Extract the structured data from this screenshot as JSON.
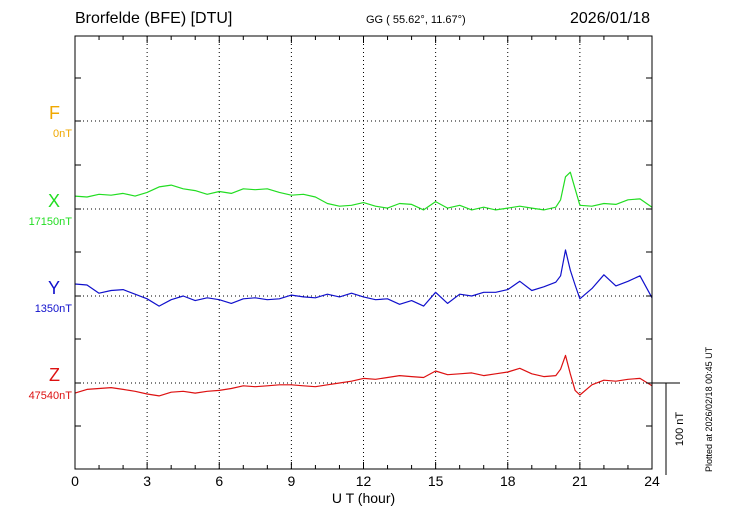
{
  "header": {
    "station": "Brorfelde (BFE)  [DTU]",
    "coords": "GG ( 55.62°,  11.67°)",
    "date": "2026/01/18"
  },
  "footer": {
    "plotted": "Plotted at 2026/02/18 00:45 UT"
  },
  "scale_bar": {
    "label": "100 nT",
    "value_nT": 100
  },
  "chart_data": {
    "type": "line",
    "title": "Brorfelde (BFE)  [DTU]",
    "xlabel": "U T (hour)",
    "ylabel": "",
    "xlim": [
      0,
      24
    ],
    "x_ticks": [
      0,
      3,
      6,
      9,
      12,
      15,
      18,
      21,
      24
    ],
    "x_tick_labels": [
      "0",
      "3",
      "6",
      "9",
      "12",
      "15",
      "18",
      "21",
      "24"
    ],
    "grid": true,
    "series": [
      {
        "name": "F",
        "baseline_label": "0nT",
        "color": "#f0a800",
        "values_x": [],
        "values_nT": []
      },
      {
        "name": "X",
        "baseline_label": "17150nT",
        "color": "#22dd22",
        "values_x": [
          0,
          0.5,
          1,
          1.5,
          2,
          2.5,
          3,
          3.5,
          4,
          4.5,
          5,
          5.5,
          6,
          6.5,
          7,
          7.5,
          8,
          8.5,
          9,
          9.5,
          10,
          10.5,
          11,
          11.5,
          12,
          12.5,
          13,
          13.5,
          14,
          14.5,
          15,
          15.5,
          16,
          16.5,
          17,
          17.5,
          18,
          18.5,
          19,
          19.5,
          20,
          20.2,
          20.4,
          20.6,
          20.8,
          21,
          21.5,
          22,
          22.5,
          23,
          23.5,
          24
        ],
        "values_nT": [
          17164,
          17163,
          17166,
          17165,
          17167,
          17164,
          17168,
          17174,
          17176,
          17172,
          17170,
          17166,
          17169,
          17167,
          17172,
          17171,
          17172,
          17168,
          17165,
          17166,
          17163,
          17156,
          17153,
          17154,
          17157,
          17153,
          17151,
          17156,
          17155,
          17149,
          17158,
          17151,
          17154,
          17149,
          17152,
          17149,
          17151,
          17153,
          17151,
          17149,
          17152,
          17160,
          17185,
          17190,
          17172,
          17154,
          17153,
          17156,
          17155,
          17160,
          17161,
          17152
        ]
      },
      {
        "name": "Y",
        "baseline_label": "1350nT",
        "color": "#1010cc",
        "values_x": [
          0,
          0.5,
          1,
          1.5,
          2,
          2.5,
          3,
          3.5,
          4,
          4.5,
          5,
          5.5,
          6,
          6.5,
          7,
          7.5,
          8,
          8.5,
          9,
          9.5,
          10,
          10.5,
          11,
          11.5,
          12,
          12.5,
          13,
          13.5,
          14,
          14.5,
          15,
          15.5,
          16,
          16.5,
          17,
          17.5,
          18,
          18.5,
          19,
          19.5,
          20,
          20.2,
          20.4,
          20.6,
          20.8,
          21,
          21.5,
          22,
          22.5,
          23,
          23.5,
          24
        ],
        "values_nT": [
          1363,
          1362,
          1353,
          1356,
          1357,
          1352,
          1347,
          1339,
          1346,
          1350,
          1345,
          1348,
          1346,
          1342,
          1347,
          1348,
          1346,
          1347,
          1351,
          1349,
          1348,
          1352,
          1349,
          1353,
          1349,
          1346,
          1347,
          1341,
          1345,
          1339,
          1354,
          1342,
          1352,
          1350,
          1354,
          1354,
          1357,
          1366,
          1356,
          1360,
          1365,
          1372,
          1400,
          1378,
          1362,
          1347,
          1358,
          1373,
          1361,
          1366,
          1372,
          1348
        ]
      },
      {
        "name": "Z",
        "baseline_label": "47540nT",
        "color": "#dd1111",
        "values_x": [
          0,
          0.5,
          1,
          1.5,
          2,
          2.5,
          3,
          3.5,
          4,
          4.5,
          5,
          5.5,
          6,
          6.5,
          7,
          7.5,
          8,
          8.5,
          9,
          9.5,
          10,
          10.5,
          11,
          11.5,
          12,
          12.5,
          13,
          13.5,
          14,
          14.5,
          15,
          15.5,
          16,
          16.5,
          17,
          17.5,
          18,
          18.5,
          19,
          19.5,
          20,
          20.2,
          20.4,
          20.6,
          20.8,
          21,
          21.5,
          22,
          22.5,
          23,
          23.5,
          24
        ],
        "values_nT": [
          47529,
          47533,
          47534,
          47535,
          47533,
          47531,
          47528,
          47526,
          47530,
          47531,
          47529,
          47531,
          47532,
          47534,
          47537,
          47536,
          47537,
          47538,
          47538,
          47537,
          47536,
          47538,
          47540,
          47542,
          47545,
          47544,
          47546,
          47548,
          47547,
          47546,
          47553,
          47549,
          47550,
          47551,
          47548,
          47550,
          47552,
          47556,
          47550,
          47547,
          47548,
          47555,
          47570,
          47550,
          47532,
          47527,
          47538,
          47543,
          47542,
          47544,
          47545,
          47537
        ]
      }
    ]
  }
}
